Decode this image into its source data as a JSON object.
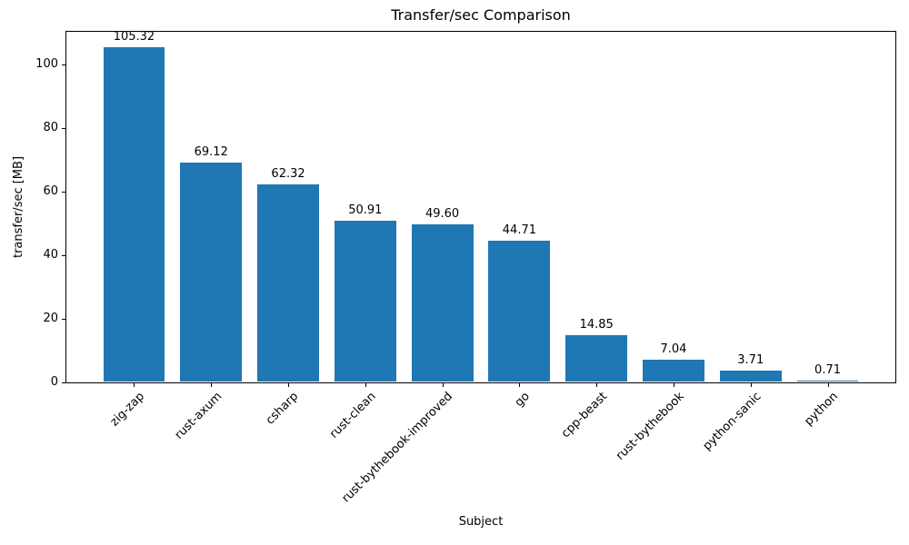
{
  "chart_data": {
    "type": "bar",
    "title": "Transfer/sec Comparison",
    "xlabel": "Subject",
    "ylabel": "transfer/sec [MB]",
    "categories": [
      "zig-zap",
      "rust-axum",
      "csharp",
      "rust-clean",
      "rust-bythebook-improved",
      "go",
      "cpp-beast",
      "rust-bythebook",
      "python-sanic",
      "python"
    ],
    "values": [
      105.32,
      69.12,
      62.32,
      50.91,
      49.6,
      44.71,
      14.85,
      7.04,
      3.71,
      0.71
    ],
    "value_labels": [
      "105.32",
      "69.12",
      "62.32",
      "50.91",
      "49.60",
      "44.71",
      "14.85",
      "7.04",
      "3.71",
      "0.71"
    ],
    "yticks": [
      0,
      20,
      40,
      60,
      80,
      100
    ],
    "ylim": [
      0,
      110.59
    ],
    "bar_color": "#1f77b4",
    "bar_width_fraction": 0.8,
    "xtick_rotation_deg": 45,
    "grid": false,
    "legend": "none"
  }
}
